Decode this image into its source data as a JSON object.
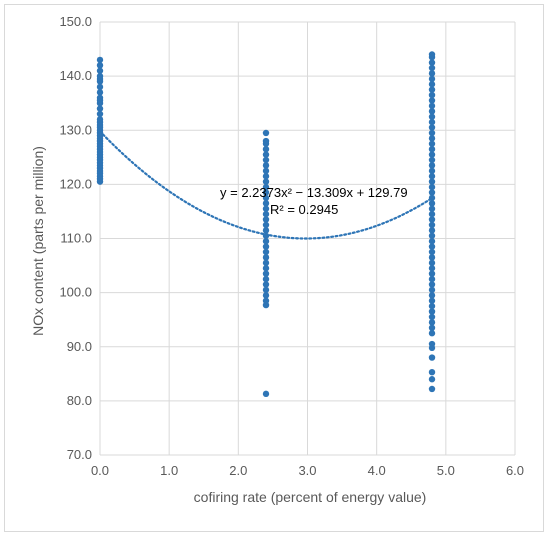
{
  "chart_data": {
    "type": "scatter",
    "xlabel": "cofiring rate (percent of energy value)",
    "ylabel": "NOx content (parts per million)",
    "xlim": [
      0,
      6
    ],
    "ylim": [
      70,
      150
    ],
    "x_ticks": [
      "0.0",
      "1.0",
      "2.0",
      "3.0",
      "4.0",
      "5.0",
      "6.0"
    ],
    "y_ticks": [
      "70.0",
      "80.0",
      "90.0",
      "100.0",
      "110.0",
      "120.0",
      "130.0",
      "140.0",
      "150.0"
    ],
    "grid": true,
    "colors": {
      "series": "#2e75b6",
      "grid": "#d9d9d9",
      "text": "#595959"
    },
    "series": [
      {
        "points": [
          [
            0,
            120.5
          ],
          [
            0,
            121
          ],
          [
            0,
            121.5
          ],
          [
            0,
            122
          ],
          [
            0,
            122.5
          ],
          [
            0,
            123
          ],
          [
            0,
            123.5
          ],
          [
            0,
            124
          ],
          [
            0,
            124.5
          ],
          [
            0,
            125
          ],
          [
            0,
            125.5
          ],
          [
            0,
            126
          ],
          [
            0,
            126.5
          ],
          [
            0,
            127
          ],
          [
            0,
            127.5
          ],
          [
            0,
            128
          ],
          [
            0,
            128.5
          ],
          [
            0,
            129
          ],
          [
            0,
            129.5
          ],
          [
            0,
            130
          ],
          [
            0,
            130.5
          ],
          [
            0,
            131
          ],
          [
            0,
            131.5
          ],
          [
            0,
            132
          ],
          [
            0,
            133
          ],
          [
            0,
            134
          ],
          [
            0,
            135
          ],
          [
            0,
            135.5
          ],
          [
            0,
            136
          ],
          [
            0,
            137
          ],
          [
            0,
            138
          ],
          [
            0,
            139
          ],
          [
            0,
            139.5
          ],
          [
            0,
            140
          ],
          [
            0,
            141
          ],
          [
            0,
            142
          ],
          [
            0,
            143
          ],
          [
            2.4,
            81.3
          ],
          [
            2.4,
            97.7
          ],
          [
            2.4,
            98.5
          ],
          [
            2.4,
            99.5
          ],
          [
            2.4,
            100.5
          ],
          [
            2.4,
            101.5
          ],
          [
            2.4,
            102.5
          ],
          [
            2.4,
            103.5
          ],
          [
            2.4,
            104.5
          ],
          [
            2.4,
            105.5
          ],
          [
            2.4,
            106.5
          ],
          [
            2.4,
            107.5
          ],
          [
            2.4,
            108.5
          ],
          [
            2.4,
            109.5
          ],
          [
            2.4,
            110.5
          ],
          [
            2.4,
            111.5
          ],
          [
            2.4,
            112.5
          ],
          [
            2.4,
            113.5
          ],
          [
            2.4,
            114.5
          ],
          [
            2.4,
            115.5
          ],
          [
            2.4,
            116.5
          ],
          [
            2.4,
            117.5
          ],
          [
            2.4,
            118.5
          ],
          [
            2.4,
            119.5
          ],
          [
            2.4,
            120.5
          ],
          [
            2.4,
            121.5
          ],
          [
            2.4,
            122.5
          ],
          [
            2.4,
            123.5
          ],
          [
            2.4,
            124.5
          ],
          [
            2.4,
            125.5
          ],
          [
            2.4,
            126.5
          ],
          [
            2.4,
            127.5
          ],
          [
            2.4,
            128
          ],
          [
            2.4,
            129.5
          ],
          [
            4.8,
            82.2
          ],
          [
            4.8,
            84.0
          ],
          [
            4.8,
            85.3
          ],
          [
            4.8,
            88.0
          ],
          [
            4.8,
            89.8
          ],
          [
            4.8,
            90.5
          ],
          [
            4.8,
            92.5
          ],
          [
            4.8,
            93.5
          ],
          [
            4.8,
            94.5
          ],
          [
            4.8,
            95.5
          ],
          [
            4.8,
            96.5
          ],
          [
            4.8,
            97.5
          ],
          [
            4.8,
            98.5
          ],
          [
            4.8,
            99.5
          ],
          [
            4.8,
            100.5
          ],
          [
            4.8,
            101.5
          ],
          [
            4.8,
            102.5
          ],
          [
            4.8,
            103.5
          ],
          [
            4.8,
            104.5
          ],
          [
            4.8,
            105.5
          ],
          [
            4.8,
            106.5
          ],
          [
            4.8,
            107.5
          ],
          [
            4.8,
            108.5
          ],
          [
            4.8,
            109.5
          ],
          [
            4.8,
            110.5
          ],
          [
            4.8,
            111.5
          ],
          [
            4.8,
            112.5
          ],
          [
            4.8,
            113.5
          ],
          [
            4.8,
            114.5
          ],
          [
            4.8,
            115.5
          ],
          [
            4.8,
            116.5
          ],
          [
            4.8,
            117.5
          ],
          [
            4.8,
            118.5
          ],
          [
            4.8,
            119.5
          ],
          [
            4.8,
            120.5
          ],
          [
            4.8,
            121.5
          ],
          [
            4.8,
            122.5
          ],
          [
            4.8,
            123.5
          ],
          [
            4.8,
            124.5
          ],
          [
            4.8,
            125.5
          ],
          [
            4.8,
            126.5
          ],
          [
            4.8,
            127.5
          ],
          [
            4.8,
            128.5
          ],
          [
            4.8,
            129.5
          ],
          [
            4.8,
            130.5
          ],
          [
            4.8,
            131.5
          ],
          [
            4.8,
            132.5
          ],
          [
            4.8,
            133.5
          ],
          [
            4.8,
            134.5
          ],
          [
            4.8,
            135.5
          ],
          [
            4.8,
            136.5
          ],
          [
            4.8,
            137.5
          ],
          [
            4.8,
            138.5
          ],
          [
            4.8,
            139.5
          ],
          [
            4.8,
            140.5
          ],
          [
            4.8,
            141.5
          ],
          [
            4.8,
            142.5
          ],
          [
            4.8,
            143.5
          ],
          [
            4.8,
            144
          ]
        ]
      }
    ],
    "trendline": {
      "type": "polynomial",
      "coefficients": [
        2.2373,
        -13.309,
        129.79
      ],
      "x_range": [
        0,
        4.8
      ],
      "equation": "y = 2.2373x² − 13.309x + 129.79",
      "r_squared": "R² = 0.2945"
    }
  }
}
